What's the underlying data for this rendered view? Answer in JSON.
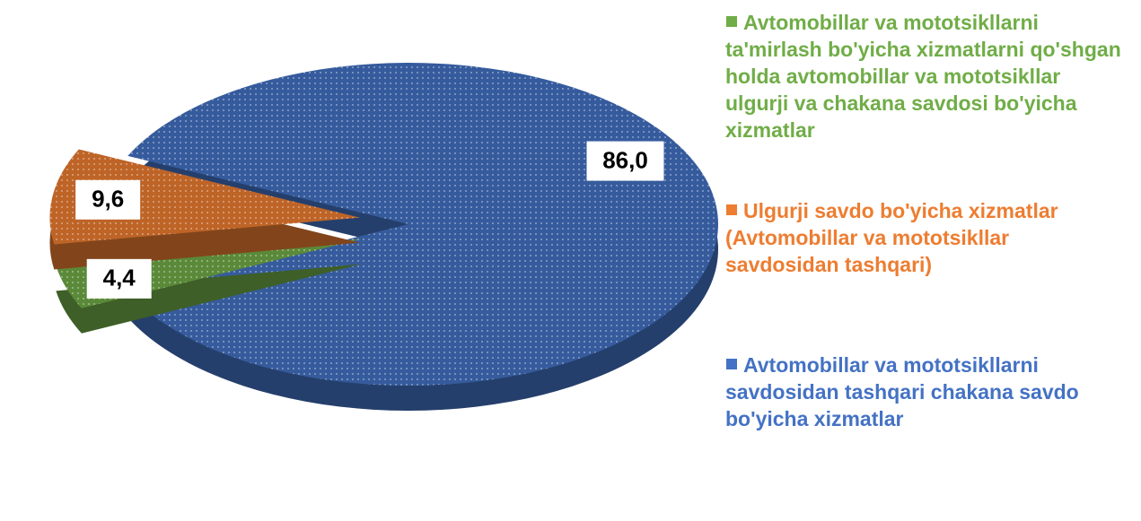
{
  "chart_data": {
    "type": "pie",
    "categories": [
      "Avtomobillar va mototsikllarni ta'mirlash bo'yicha xizmatlarni qo'shgan holda avtomobillar va mototsikllar ulgurji va chakana savdosi bo'yicha xizmatlar",
      "Ulgurji savdo bo'yicha xizmatlar (Avtomobillar va mototsikllar savdosidan tashqari)",
      "Avtomobillar va mototsikllarni savdosidan tashqari chakana savdo bo'yicha xizmatlar"
    ],
    "values": [
      4.4,
      9.6,
      86.0
    ],
    "value_labels": [
      "4,4",
      "9,6",
      "86,0"
    ],
    "colors": [
      "#70ad47",
      "#ed7d31",
      "#4472c4"
    ]
  }
}
